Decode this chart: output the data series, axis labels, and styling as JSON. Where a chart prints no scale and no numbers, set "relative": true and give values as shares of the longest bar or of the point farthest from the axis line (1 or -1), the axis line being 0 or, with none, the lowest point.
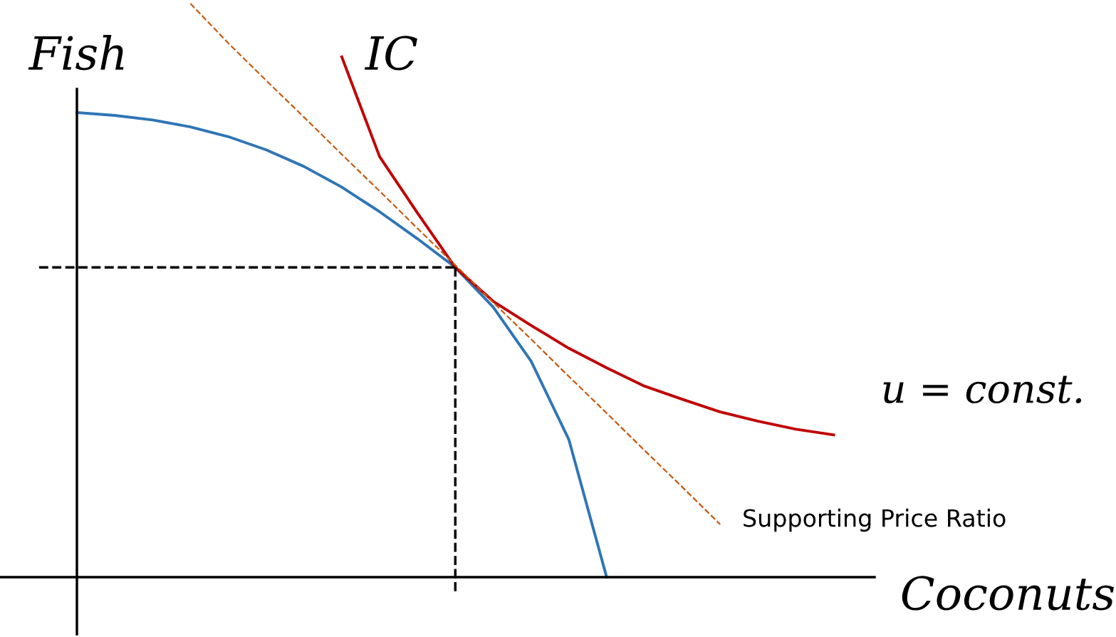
{
  "chart_data": {
    "type": "line",
    "relative": true,
    "ylabel": "Fish",
    "xlabel": "Coconuts",
    "legend": false,
    "annotations": [
      "u = const."
    ],
    "categories": [
      null,
      null,
      null,
      null,
      null,
      null,
      null,
      null,
      null,
      null,
      null,
      null,
      null,
      null,
      null,
      null,
      null,
      null,
      null,
      null,
      null,
      null
    ],
    "series": [
      {
        "color": "#2e75b6",
        "line_style": "solid",
        "values": [
          null,
          0.81,
          0.805,
          0.797,
          0.785,
          0.768,
          0.745,
          0.716,
          0.68,
          0.637,
          0.59,
          0.54,
          0.471,
          0.377,
          0.24,
          0,
          null,
          null,
          null,
          null,
          null,
          null
        ]
      },
      {
        "name": "IC",
        "color": "#c00000",
        "line_style": "solid",
        "values": [
          null,
          null,
          null,
          null,
          null,
          null,
          null,
          null,
          0.907,
          0.733,
          0.635,
          0.54,
          0.481,
          0.439,
          0.399,
          0.365,
          0.333,
          0.31,
          0.288,
          0.272,
          0.258,
          0.248
        ]
      },
      {
        "name": "Supporting Price Ratio",
        "color": "#c55a11",
        "line_style": "dashed",
        "values": [
          null,
          null,
          null,
          null,
          1.0,
          0.931,
          0.866,
          0.802,
          0.737,
          0.673,
          0.608,
          0.544,
          0.479,
          0.415,
          0.35,
          0.286,
          0.221,
          0.157,
          0.092,
          null,
          null,
          null
        ]
      },
      {
        "color": "#000000",
        "line_style": "dashed",
        "values": [
          0.54,
          0.54,
          0.54,
          0.54,
          0.54,
          0.54,
          0.54,
          0.54,
          0.54,
          0.54,
          0.54,
          0.54,
          null,
          null,
          null,
          null,
          null,
          null,
          null,
          null,
          null,
          null
        ]
      }
    ]
  }
}
